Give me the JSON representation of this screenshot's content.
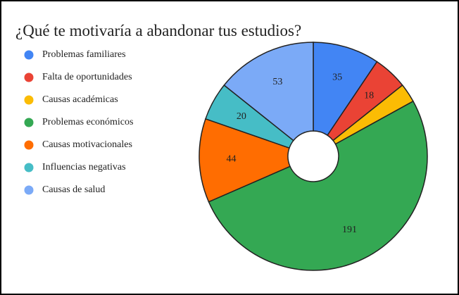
{
  "chart_data": {
    "type": "donut",
    "title": "¿Qué te motivaría a abandonar tus estudios?",
    "categories": [
      "Problemas familiares",
      "Falta de oportunidades",
      "Causas académicas",
      "Problemas económicos",
      "Causas motivacionales",
      "Influencias negativas",
      "Causas de salud"
    ],
    "values": [
      35,
      18,
      10,
      191,
      44,
      20,
      53
    ],
    "colors": [
      "#4285f4",
      "#ea4335",
      "#fbbc04",
      "#34a853",
      "#ff6d01",
      "#46bdc6",
      "#7baaf7"
    ],
    "legend": "left"
  }
}
